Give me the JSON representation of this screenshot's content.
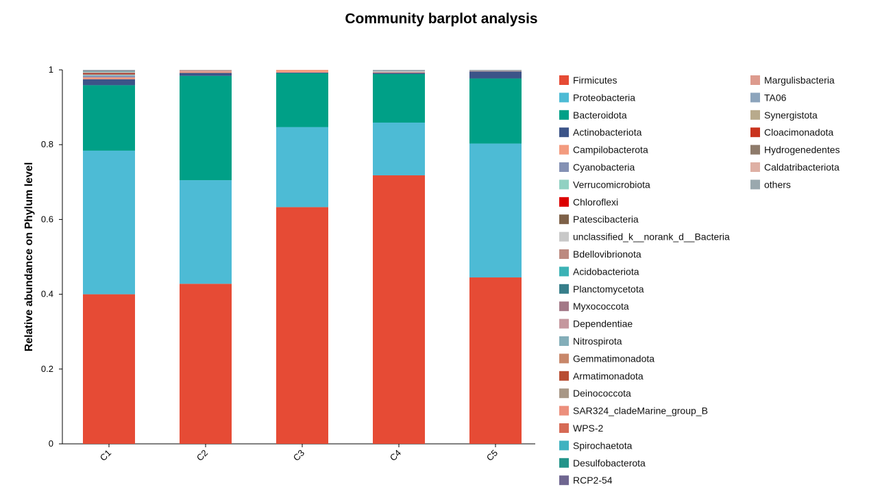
{
  "chart_data": {
    "type": "bar",
    "stacked": true,
    "title": "Community barplot analysis",
    "xlabel": "",
    "ylabel": "Relative abundance on Phylum level",
    "ylim": [
      0,
      1
    ],
    "yticks": [
      0,
      0.2,
      0.4,
      0.6,
      0.8,
      1
    ],
    "ytick_labels": [
      "0",
      "0.2",
      "0.4",
      "0.6",
      "0.8",
      "1"
    ],
    "categories": [
      "C1",
      "C2",
      "C3",
      "C4",
      "C5"
    ],
    "legend_position": "right",
    "series": [
      {
        "name": "Firmicutes",
        "color": "#E64B35",
        "values": [
          0.4,
          0.428,
          0.633,
          0.718,
          0.445
        ]
      },
      {
        "name": "Proteobacteria",
        "color": "#4DBBD5",
        "values": [
          0.384,
          0.277,
          0.214,
          0.141,
          0.358
        ]
      },
      {
        "name": "Bacteroidota",
        "color": "#00A087",
        "values": [
          0.175,
          0.279,
          0.144,
          0.13,
          0.174
        ]
      },
      {
        "name": "Actinobacteriota",
        "color": "#3C5488",
        "values": [
          0.016,
          0.008,
          0.002,
          0.003,
          0.019
        ]
      },
      {
        "name": "Campilobacterota",
        "color": "#F39B7F",
        "values": [
          0.005,
          0.004,
          0.007,
          0.002,
          0.001
        ]
      },
      {
        "name": "Cyanobacteria",
        "color": "#8491B4",
        "values": [
          0.005,
          0.001,
          0.0,
          0.001,
          0.0
        ]
      },
      {
        "name": "Verrucomicrobiota",
        "color": "#91D1C2",
        "values": [
          0.003,
          0.0,
          0.0,
          0.0,
          0.0
        ]
      },
      {
        "name": "Chloroflexi",
        "color": "#DC0000",
        "values": [
          0.002,
          0.0,
          0.0,
          0.0,
          0.0
        ]
      },
      {
        "name": "Patescibacteria",
        "color": "#7E6148",
        "values": [
          0.002,
          0.0,
          0.0,
          0.0,
          0.0
        ]
      },
      {
        "name": "unclassified_k__norank_d__Bacteria",
        "color": "#C8C8C8",
        "values": [
          0.002,
          0.0,
          0.0,
          0.001,
          0.0
        ]
      },
      {
        "name": "Bdellovibrionota",
        "color": "#BC8A80",
        "values": [
          0.001,
          0.0,
          0.0,
          0.0,
          0.0
        ]
      },
      {
        "name": "Acidobacteriota",
        "color": "#3BB2B5",
        "values": [
          0.001,
          0.0,
          0.0,
          0.0,
          0.0
        ]
      },
      {
        "name": "Planctomycetota",
        "color": "#377E8A",
        "values": [
          0.001,
          0.0,
          0.0,
          0.0,
          0.0
        ]
      },
      {
        "name": "Myxococcota",
        "color": "#A37887",
        "values": [
          0.001,
          0.0,
          0.0,
          0.0,
          0.0
        ]
      },
      {
        "name": "Dependentiae",
        "color": "#C5979E",
        "values": [
          0.0,
          0.0,
          0.0,
          0.0,
          0.0
        ]
      },
      {
        "name": "Nitrospirota",
        "color": "#84AEB9",
        "values": [
          0.0,
          0.0,
          0.0,
          0.0,
          0.0
        ]
      },
      {
        "name": "Gemmatimonadota",
        "color": "#C8876A",
        "values": [
          0.0,
          0.0,
          0.0,
          0.0,
          0.0
        ]
      },
      {
        "name": "Armatimonadota",
        "color": "#B84D32",
        "values": [
          0.0,
          0.0,
          0.0,
          0.0,
          0.0
        ]
      },
      {
        "name": "Deinococcota",
        "color": "#A89786",
        "values": [
          0.0,
          0.0,
          0.0,
          0.0,
          0.0
        ]
      },
      {
        "name": "SAR324_cladeMarine_group_B",
        "color": "#EC8F7C",
        "values": [
          0.0,
          0.002,
          0.0,
          0.0,
          0.0
        ]
      },
      {
        "name": "WPS-2",
        "color": "#D66A55",
        "values": [
          0.0,
          0.0,
          0.0,
          0.0,
          0.0
        ]
      },
      {
        "name": "Spirochaetota",
        "color": "#3FB2C0",
        "values": [
          0.0,
          0.0,
          0.0,
          0.0,
          0.0
        ]
      },
      {
        "name": "Desulfobacterota",
        "color": "#23948A",
        "values": [
          0.0,
          0.0,
          0.0,
          0.0,
          0.0
        ]
      },
      {
        "name": "RCP2-54",
        "color": "#6F6690",
        "values": [
          0.0,
          0.0,
          0.0,
          0.0,
          0.0
        ]
      },
      {
        "name": "Margulisbacteria",
        "color": "#DD9B8E",
        "values": [
          0.0,
          0.0,
          0.0,
          0.0,
          0.0
        ]
      },
      {
        "name": "TA06",
        "color": "#8CA4BC",
        "values": [
          0.0,
          0.0,
          0.0,
          0.0,
          0.0
        ]
      },
      {
        "name": "Synergistota",
        "color": "#B8AA8C",
        "values": [
          0.0,
          0.0,
          0.0,
          0.0,
          0.0
        ]
      },
      {
        "name": "Cloacimonadota",
        "color": "#C9331D",
        "values": [
          0.0,
          0.0,
          0.0,
          0.0,
          0.0
        ]
      },
      {
        "name": "Hydrogenedentes",
        "color": "#8E7B6B",
        "values": [
          0.0,
          0.0,
          0.0,
          0.0,
          0.0
        ]
      },
      {
        "name": "Caldatribacteriota",
        "color": "#DEB0A4",
        "values": [
          0.0,
          0.0,
          0.0,
          0.0,
          0.0
        ]
      },
      {
        "name": "others",
        "color": "#9AA8AE",
        "values": [
          0.002,
          0.001,
          0.0,
          0.004,
          0.003
        ]
      }
    ]
  }
}
